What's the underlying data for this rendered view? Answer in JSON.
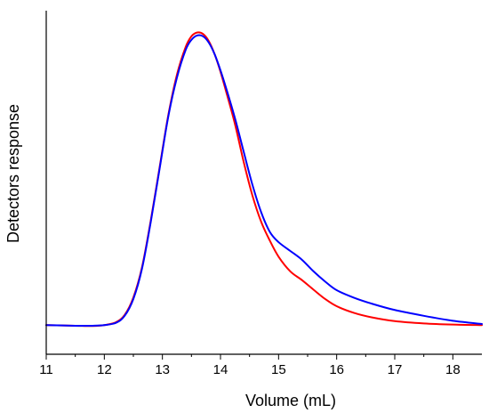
{
  "chart_data": {
    "type": "line",
    "title": "",
    "xlabel": "Volume (mL)",
    "ylabel": "Detectors response",
    "xlim": [
      11,
      18.5
    ],
    "ylim": [
      -0.1,
      1.08
    ],
    "x_ticks": [
      "11",
      "12",
      "13",
      "14",
      "15",
      "16",
      "17",
      "18"
    ],
    "y_ticks_shown": false,
    "grid": false,
    "legend": "none",
    "series": [
      {
        "color": "#ff0000",
        "points": [
          [
            11.0,
            0.0
          ],
          [
            11.5,
            -0.002
          ],
          [
            11.8,
            -0.003
          ],
          [
            12.0,
            0.0
          ],
          [
            12.2,
            0.01
          ],
          [
            12.35,
            0.035
          ],
          [
            12.5,
            0.095
          ],
          [
            12.65,
            0.2
          ],
          [
            12.8,
            0.36
          ],
          [
            12.95,
            0.54
          ],
          [
            13.1,
            0.72
          ],
          [
            13.25,
            0.86
          ],
          [
            13.4,
            0.955
          ],
          [
            13.5,
            0.992
          ],
          [
            13.6,
            1.005
          ],
          [
            13.7,
            1.0
          ],
          [
            13.8,
            0.975
          ],
          [
            13.9,
            0.93
          ],
          [
            14.0,
            0.87
          ],
          [
            14.1,
            0.8
          ],
          [
            14.25,
            0.69
          ],
          [
            14.4,
            0.56
          ],
          [
            14.55,
            0.445
          ],
          [
            14.7,
            0.355
          ],
          [
            14.85,
            0.29
          ],
          [
            15.0,
            0.235
          ],
          [
            15.2,
            0.185
          ],
          [
            15.4,
            0.155
          ],
          [
            15.6,
            0.122
          ],
          [
            15.8,
            0.09
          ],
          [
            16.0,
            0.065
          ],
          [
            16.3,
            0.042
          ],
          [
            16.6,
            0.027
          ],
          [
            17.0,
            0.014
          ],
          [
            17.5,
            0.006
          ],
          [
            18.0,
            0.002
          ],
          [
            18.5,
            0.0
          ]
        ]
      },
      {
        "color": "#0000ff",
        "points": [
          [
            11.0,
            0.0
          ],
          [
            11.5,
            -0.002
          ],
          [
            11.8,
            -0.002
          ],
          [
            12.0,
            0.0
          ],
          [
            12.2,
            0.008
          ],
          [
            12.35,
            0.032
          ],
          [
            12.5,
            0.09
          ],
          [
            12.65,
            0.195
          ],
          [
            12.8,
            0.355
          ],
          [
            12.95,
            0.535
          ],
          [
            13.1,
            0.715
          ],
          [
            13.25,
            0.85
          ],
          [
            13.4,
            0.945
          ],
          [
            13.5,
            0.98
          ],
          [
            13.6,
            0.995
          ],
          [
            13.7,
            0.992
          ],
          [
            13.8,
            0.97
          ],
          [
            13.9,
            0.93
          ],
          [
            14.0,
            0.875
          ],
          [
            14.1,
            0.812
          ],
          [
            14.25,
            0.71
          ],
          [
            14.4,
            0.595
          ],
          [
            14.55,
            0.482
          ],
          [
            14.7,
            0.388
          ],
          [
            14.85,
            0.32
          ],
          [
            15.0,
            0.285
          ],
          [
            15.2,
            0.255
          ],
          [
            15.4,
            0.225
          ],
          [
            15.6,
            0.185
          ],
          [
            15.8,
            0.15
          ],
          [
            16.0,
            0.12
          ],
          [
            16.3,
            0.094
          ],
          [
            16.6,
            0.074
          ],
          [
            17.0,
            0.052
          ],
          [
            17.5,
            0.032
          ],
          [
            18.0,
            0.015
          ],
          [
            18.5,
            0.004
          ]
        ]
      }
    ]
  }
}
